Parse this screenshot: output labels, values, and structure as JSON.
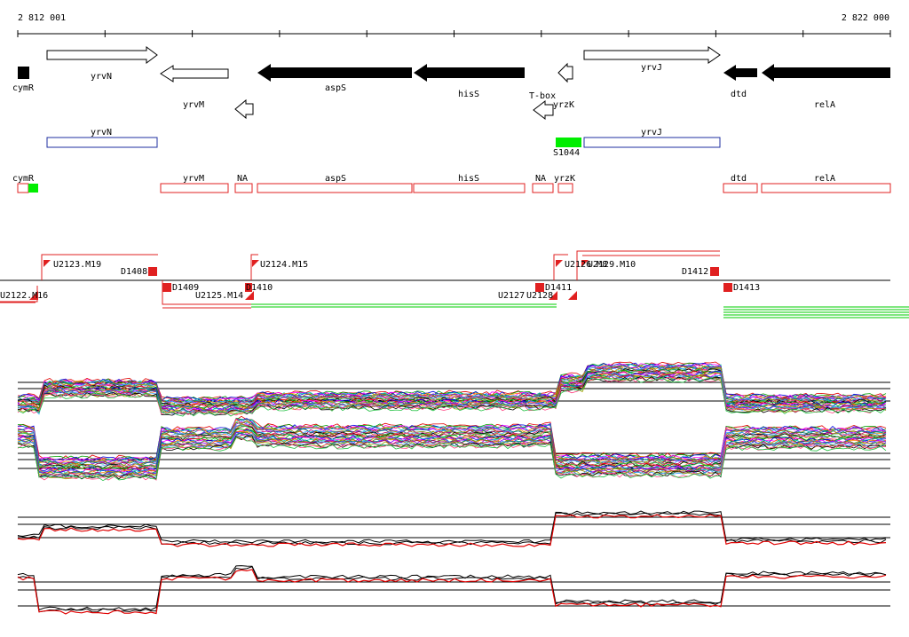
{
  "coordinates": {
    "start": "2 812 001",
    "end": "2 822 000"
  },
  "genes": [
    "cymR",
    "yrvN",
    "yrvM",
    "aspS",
    "hisS",
    "T-box",
    "yrzK",
    "yrvJ",
    "dtd",
    "relA"
  ],
  "annotated_features": {
    "blue": [
      "yrvN",
      "yrvJ"
    ],
    "green": [
      "S1044"
    ]
  },
  "red_features": [
    "cymR",
    "yrvM",
    "NA",
    "aspS",
    "hisS",
    "NA",
    "yrzK",
    "dtd",
    "relA"
  ],
  "segment_labels": [
    "U2122.M16",
    "U2123.M19",
    "D1408",
    "D1409",
    "U2125.M14",
    "D1410",
    "U2124.M15",
    "U2127",
    "U2128",
    "D1411",
    "U2126.M8",
    "U2129.M10",
    "D1412",
    "D1413"
  ],
  "colors": {
    "gene_outline": "#000000",
    "blue_box": "#1f2fa0",
    "red_box": "#e02020",
    "green_box": "#00ee00",
    "upshift_line": "#e02020",
    "downshift_line": "#00cc00"
  }
}
